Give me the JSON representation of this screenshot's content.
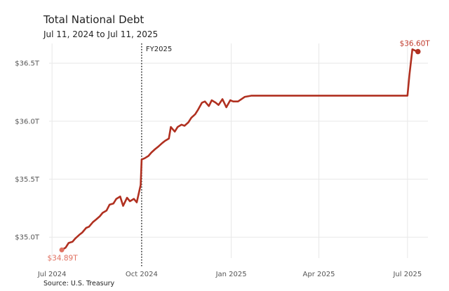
{
  "chart_data": {
    "type": "line",
    "title": "Total National Debt",
    "subtitle": "Jul 11, 2024 to Jul 11, 2025",
    "source": "Source: U.S. Treasury",
    "color": "#b03020",
    "start_label_color": "#e07060",
    "end_label_color": "#c0392b",
    "grid": true,
    "ylim": [
      34.82,
      36.67
    ],
    "xlim": [
      "2024-06-28",
      "2025-07-22"
    ],
    "yticks": [
      {
        "value": 35.0,
        "label": "$35.0T"
      },
      {
        "value": 35.5,
        "label": "$35.5T"
      },
      {
        "value": 36.0,
        "label": "$36.0T"
      },
      {
        "value": 36.5,
        "label": "$36.5T"
      }
    ],
    "xticks": [
      {
        "date": "2024-07-01",
        "label": "Jul 2024"
      },
      {
        "date": "2024-10-01",
        "label": "Oct 2024"
      },
      {
        "date": "2025-01-01",
        "label": "Jan 2025"
      },
      {
        "date": "2025-04-01",
        "label": "Apr 2025"
      },
      {
        "date": "2025-07-01",
        "label": "Jul 2025"
      }
    ],
    "vline": {
      "date": "2024-10-01",
      "label": "FY2025"
    },
    "start_point": {
      "date": "2024-07-11",
      "value": 34.89,
      "label": "$34.89T"
    },
    "end_point": {
      "date": "2025-07-11",
      "value": 36.6,
      "label": "$36.60T"
    },
    "series": [
      {
        "x": [
          "2024-07-11",
          "2024-07-15",
          "2024-07-18",
          "2024-07-22",
          "2024-07-25",
          "2024-07-29",
          "2024-08-01",
          "2024-08-05",
          "2024-08-08",
          "2024-08-12",
          "2024-08-15",
          "2024-08-19",
          "2024-08-22",
          "2024-08-26",
          "2024-08-29",
          "2024-09-02",
          "2024-09-05",
          "2024-09-09",
          "2024-09-12",
          "2024-09-16",
          "2024-09-19",
          "2024-09-23",
          "2024-09-26",
          "2024-09-30",
          "2024-10-01",
          "2024-10-04",
          "2024-10-08",
          "2024-10-11",
          "2024-10-15",
          "2024-10-18",
          "2024-10-22",
          "2024-10-25",
          "2024-10-29",
          "2024-10-31",
          "2024-11-04",
          "2024-11-07",
          "2024-11-11",
          "2024-11-14",
          "2024-11-18",
          "2024-11-21",
          "2024-11-25",
          "2024-11-28",
          "2024-12-02",
          "2024-12-05",
          "2024-12-09",
          "2024-12-12",
          "2024-12-16",
          "2024-12-19",
          "2024-12-23",
          "2024-12-27",
          "2024-12-31",
          "2025-01-03",
          "2025-01-08",
          "2025-01-15",
          "2025-01-22",
          "2025-02-01",
          "2025-02-15",
          "2025-03-01",
          "2025-03-15",
          "2025-04-01",
          "2025-04-15",
          "2025-05-01",
          "2025-05-15",
          "2025-06-01",
          "2025-06-15",
          "2025-07-01",
          "2025-07-03",
          "2025-07-06",
          "2025-07-11"
        ],
        "values": [
          34.89,
          34.91,
          34.95,
          34.96,
          34.99,
          35.02,
          35.04,
          35.08,
          35.09,
          35.13,
          35.15,
          35.18,
          35.21,
          35.23,
          35.28,
          35.29,
          35.33,
          35.35,
          35.27,
          35.34,
          35.31,
          35.33,
          35.3,
          35.45,
          35.67,
          35.68,
          35.7,
          35.73,
          35.76,
          35.78,
          35.81,
          35.83,
          35.85,
          35.95,
          35.91,
          35.95,
          35.97,
          35.96,
          35.99,
          36.03,
          36.06,
          36.1,
          36.16,
          36.17,
          36.13,
          36.18,
          36.16,
          36.14,
          36.19,
          36.12,
          36.18,
          36.17,
          36.17,
          36.21,
          36.22,
          36.22,
          36.22,
          36.22,
          36.22,
          36.22,
          36.22,
          36.22,
          36.22,
          36.22,
          36.22,
          36.22,
          36.4,
          36.62,
          36.6
        ]
      }
    ]
  }
}
